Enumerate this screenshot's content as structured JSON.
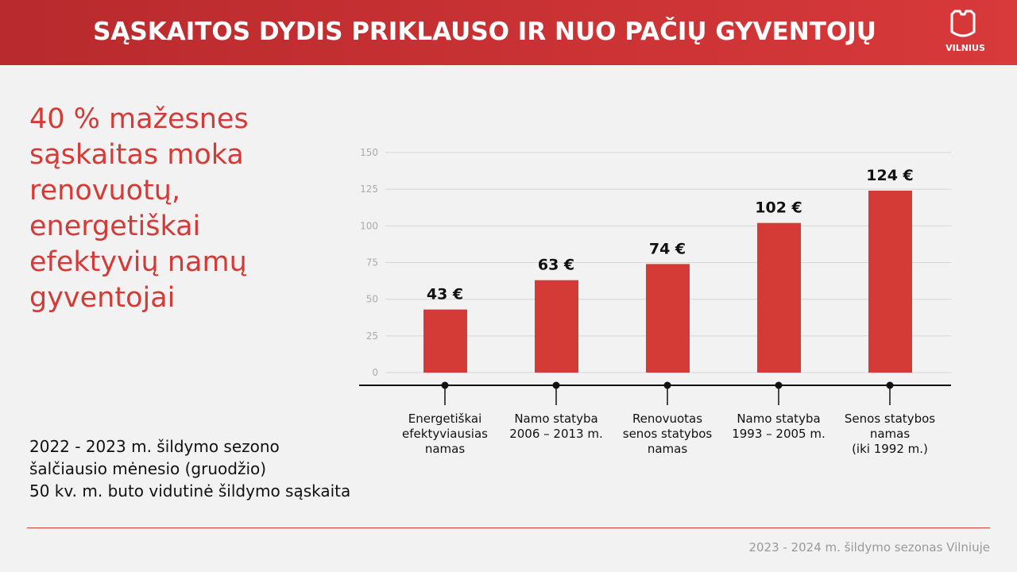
{
  "header": {
    "title": "SĄSKAITOS DYDIS PRIKLAUSO IR NUO PAČIŲ GYVENTOJŲ",
    "logo": "VILNIUS"
  },
  "headline": [
    "40 % mažesnes",
    "sąskaitas moka",
    "renovuotų,",
    "energetiškai",
    "efektyvių namų",
    "gyventojai"
  ],
  "subtitle": [
    "2022 - 2023 m. šildymo sezono",
    "šalčiausio mėnesio (gruodžio)",
    "50 kv. m. buto vidutinė šildymo sąskaita"
  ],
  "footer": "2023 - 2024 m. šildymo sezonas Vilniuje",
  "chart_data": {
    "type": "bar",
    "categories": [
      "Energetiškai\nefektyviausias\nnamas",
      "Namo statyba\n2006 – 2013 m.",
      "Renovuotas\nsenos statybos\nnamas",
      "Namo statyba\n1993 – 2005 m.",
      "Senos statybos\nnamas\n(iki 1992 m.)"
    ],
    "values": [
      43,
      63,
      74,
      102,
      124
    ],
    "value_labels": [
      "43 €",
      "63 €",
      "74 €",
      "102 €",
      "124 €"
    ],
    "color": "#d43a36",
    "ylim": [
      0,
      150
    ],
    "yticks": [
      0,
      25,
      50,
      75,
      100,
      125,
      150
    ],
    "grid": true
  }
}
